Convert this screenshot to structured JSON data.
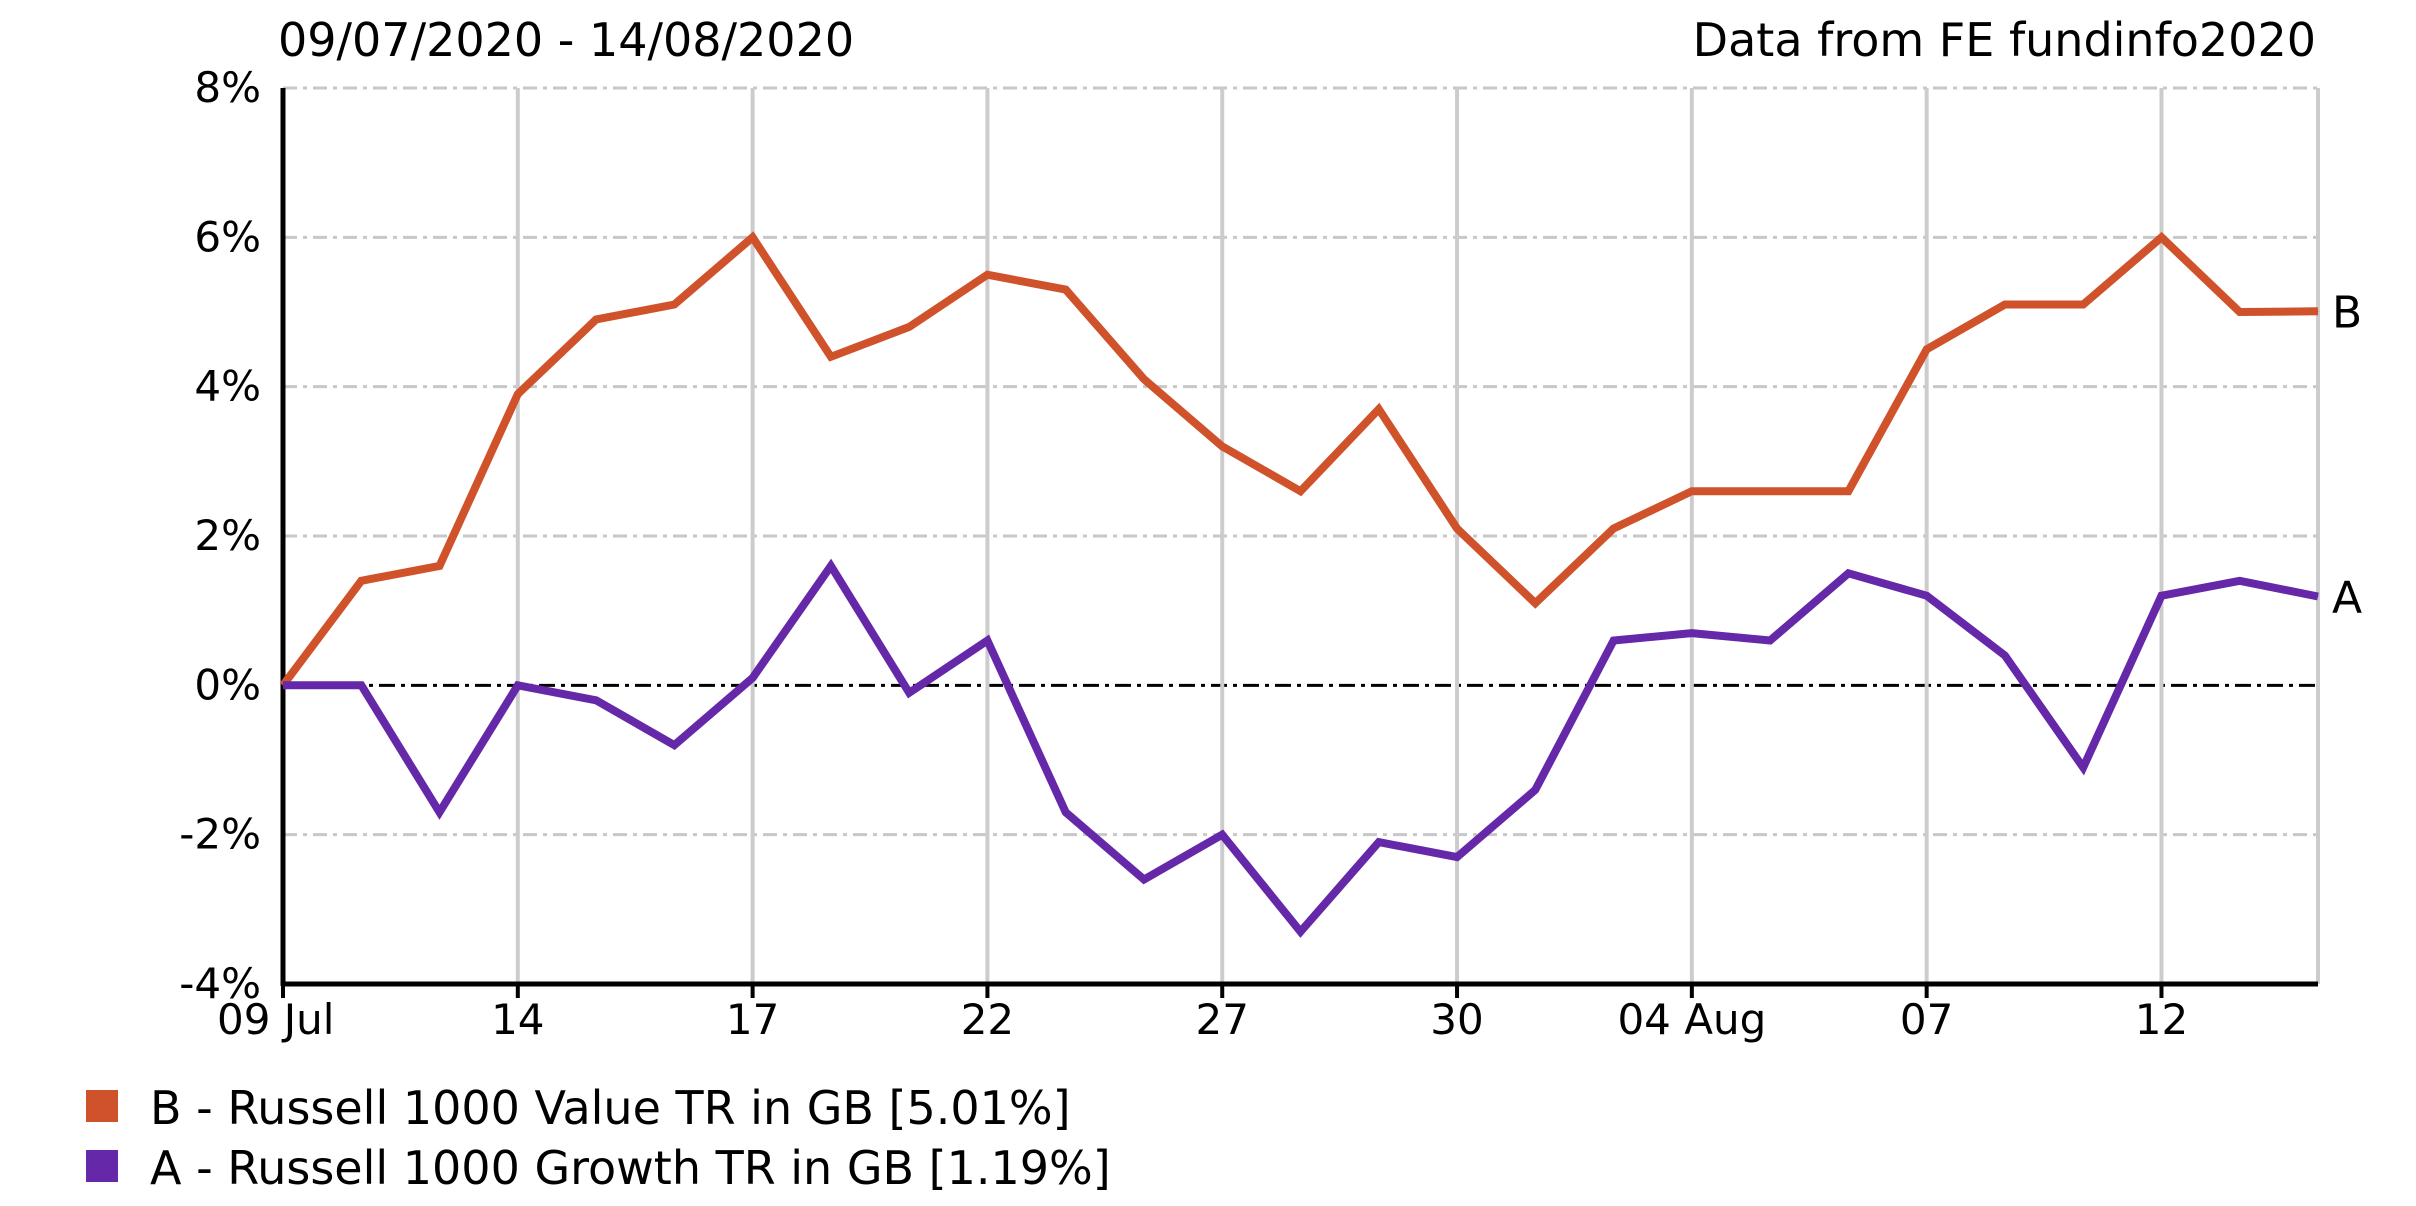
{
  "header": {
    "date_range": "09/07/2020 - 14/08/2020",
    "source": "Data from FE fundinfo2020"
  },
  "chart_data": {
    "type": "line",
    "ylim": [
      -4,
      8
    ],
    "yticks": [
      {
        "value": 8,
        "label": "8%"
      },
      {
        "value": 6,
        "label": "6%"
      },
      {
        "value": 4,
        "label": "4%"
      },
      {
        "value": 2,
        "label": "2%"
      },
      {
        "value": 0,
        "label": "0%"
      },
      {
        "value": -2,
        "label": "-2%"
      },
      {
        "value": -4,
        "label": "-4%"
      }
    ],
    "x": [
      "2020-07-09",
      "2020-07-10",
      "2020-07-13",
      "2020-07-14",
      "2020-07-15",
      "2020-07-16",
      "2020-07-17",
      "2020-07-20",
      "2020-07-21",
      "2020-07-22",
      "2020-07-23",
      "2020-07-24",
      "2020-07-27",
      "2020-07-28",
      "2020-07-29",
      "2020-07-30",
      "2020-07-31",
      "2020-08-03",
      "2020-08-04",
      "2020-08-05",
      "2020-08-06",
      "2020-08-07",
      "2020-08-10",
      "2020-08-11",
      "2020-08-12",
      "2020-08-13",
      "2020-08-14"
    ],
    "xticks": [
      {
        "x": "2020-07-09",
        "label": "09 Jul"
      },
      {
        "x": "2020-07-14",
        "label": "14"
      },
      {
        "x": "2020-07-17",
        "label": "17"
      },
      {
        "x": "2020-07-22",
        "label": "22"
      },
      {
        "x": "2020-07-27",
        "label": "27"
      },
      {
        "x": "2020-07-30",
        "label": "30"
      },
      {
        "x": "2020-08-04",
        "label": "04 Aug"
      },
      {
        "x": "2020-08-07",
        "label": "07"
      },
      {
        "x": "2020-08-12",
        "label": "12"
      }
    ],
    "series": [
      {
        "name": "B - Russell 1000 Value TR in GB [5.01%]",
        "marker": "B",
        "color": "#d0522b",
        "values": [
          0.0,
          1.4,
          1.6,
          3.9,
          4.9,
          5.1,
          6.0,
          4.4,
          4.8,
          5.5,
          5.3,
          4.1,
          3.2,
          2.6,
          3.7,
          2.1,
          1.1,
          2.1,
          2.6,
          2.6,
          2.6,
          4.5,
          5.1,
          5.1,
          6.0,
          5.0,
          5.01
        ]
      },
      {
        "name": "A - Russell 1000 Growth TR in GB [1.19%]",
        "marker": "A",
        "color": "#6528a8",
        "values": [
          0.0,
          0.0,
          -1.7,
          0.0,
          -0.2,
          -0.8,
          0.1,
          1.6,
          -0.1,
          0.6,
          -1.7,
          -2.6,
          -2.0,
          -3.3,
          -2.1,
          -2.3,
          -1.4,
          0.6,
          0.7,
          0.6,
          1.5,
          1.2,
          0.4,
          -1.1,
          1.2,
          1.4,
          1.19
        ]
      }
    ],
    "zero_line": 0,
    "grid": true
  }
}
